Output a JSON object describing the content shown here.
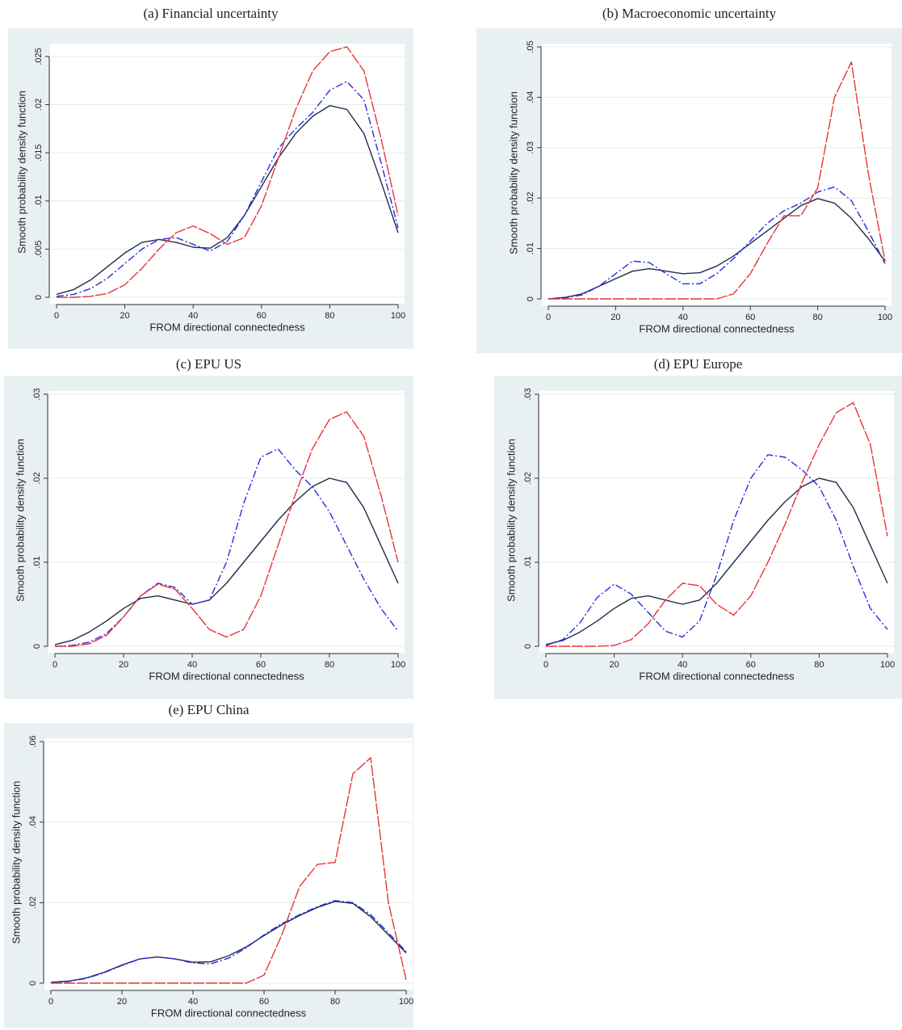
{
  "chart_data": [
    {
      "type": "line",
      "title": "(a) Financial uncertainty",
      "xlabel": "FROM directional connectedness",
      "ylabel": "Smooth probability density function",
      "x": [
        0,
        5,
        10,
        15,
        20,
        25,
        30,
        35,
        40,
        45,
        50,
        55,
        60,
        65,
        70,
        75,
        80,
        85,
        90,
        95,
        100
      ],
      "xlim": [
        0,
        100
      ],
      "xticks": [
        0,
        20,
        40,
        60,
        80,
        100
      ],
      "ylim": [
        0,
        0.026
      ],
      "yticks": [
        0,
        {
          "value": 0.005,
          "label": ".005"
        },
        {
          "value": 0.01,
          "label": ".01"
        },
        {
          "value": 0.015,
          "label": ".015"
        },
        {
          "value": 0.02,
          "label": ".02"
        },
        {
          "value": 0.025,
          "label": ".025"
        }
      ],
      "grid": true,
      "series": [
        {
          "color": "#1f2d4d",
          "dash": "none",
          "values": [
            0.0003,
            0.0008,
            0.0018,
            0.0032,
            0.0046,
            0.0057,
            0.006,
            0.0057,
            0.0052,
            0.0051,
            0.0062,
            0.0085,
            0.0115,
            0.0145,
            0.017,
            0.0188,
            0.0199,
            0.0195,
            0.017,
            0.012,
            0.0067
          ]
        },
        {
          "color": "#2a2ae0",
          "dash": "9,3,2,3",
          "values": [
            0.0001,
            0.0003,
            0.0009,
            0.002,
            0.0035,
            0.005,
            0.006,
            0.0062,
            0.0055,
            0.0048,
            0.0058,
            0.0085,
            0.012,
            0.0155,
            0.0175,
            0.0192,
            0.0215,
            0.0224,
            0.0205,
            0.014,
            0.0072
          ]
        },
        {
          "color": "#e8343a",
          "dash": "14,2",
          "values": [
            0,
            0,
            0.0001,
            0.0004,
            0.0013,
            0.003,
            0.005,
            0.0067,
            0.0074,
            0.0066,
            0.0055,
            0.0062,
            0.0095,
            0.0145,
            0.0195,
            0.0235,
            0.0255,
            0.026,
            0.0235,
            0.0165,
            0.0085
          ]
        }
      ]
    },
    {
      "type": "line",
      "title": "(b) Macroeconomic uncertainty",
      "xlabel": "FROM directional connectedness",
      "ylabel": "Smooth probability density function",
      "x": [
        0,
        5,
        10,
        15,
        20,
        25,
        30,
        35,
        40,
        45,
        50,
        55,
        60,
        65,
        70,
        75,
        80,
        85,
        90,
        95,
        100
      ],
      "xlim": [
        0,
        100
      ],
      "xticks": [
        0,
        20,
        40,
        60,
        80,
        100
      ],
      "ylim": [
        0,
        0.05
      ],
      "yticks": [
        0,
        {
          "value": 0.01,
          "label": ".01"
        },
        {
          "value": 0.02,
          "label": ".02"
        },
        {
          "value": 0.03,
          "label": ".03"
        },
        {
          "value": 0.04,
          "label": ".04"
        },
        {
          "value": 0.05,
          "label": ".05"
        }
      ],
      "grid": true,
      "series": [
        {
          "color": "#1f2d4d",
          "dash": "none",
          "values": [
            0,
            0.0003,
            0.001,
            0.0025,
            0.004,
            0.0055,
            0.006,
            0.0055,
            0.005,
            0.0052,
            0.0065,
            0.0085,
            0.011,
            0.0135,
            0.016,
            0.0185,
            0.0199,
            0.019,
            0.016,
            0.012,
            0.0075
          ]
        },
        {
          "color": "#2a2ae0",
          "dash": "9,3,2,3",
          "values": [
            0,
            0.0002,
            0.0008,
            0.0025,
            0.005,
            0.0075,
            0.0072,
            0.005,
            0.003,
            0.003,
            0.005,
            0.008,
            0.0115,
            0.015,
            0.0175,
            0.019,
            0.0212,
            0.0222,
            0.0195,
            0.0135,
            0.007
          ]
        },
        {
          "color": "#e8343a",
          "dash": "14,2",
          "values": [
            0,
            0,
            0,
            0,
            0,
            0,
            0,
            0,
            0,
            0,
            0,
            0.001,
            0.005,
            0.011,
            0.0165,
            0.0165,
            0.022,
            0.04,
            0.047,
            0.025,
            0.0075
          ]
        }
      ]
    },
    {
      "type": "line",
      "title": "(c) EPU US",
      "xlabel": "FROM directional connectedness",
      "ylabel": "Smooth probability density function",
      "x": [
        0,
        5,
        10,
        15,
        20,
        25,
        30,
        35,
        40,
        45,
        50,
        55,
        60,
        65,
        70,
        75,
        80,
        85,
        90,
        95,
        100
      ],
      "xlim": [
        0,
        100
      ],
      "xticks": [
        0,
        20,
        40,
        60,
        80,
        100
      ],
      "ylim": [
        0,
        0.03
      ],
      "yticks": [
        0,
        {
          "value": 0.01,
          "label": ".01"
        },
        {
          "value": 0.02,
          "label": ".02"
        },
        {
          "value": 0.03,
          "label": ".03"
        }
      ],
      "grid": true,
      "series": [
        {
          "color": "#1f2d4d",
          "dash": "none",
          "values": [
            0.0002,
            0.0007,
            0.0017,
            0.003,
            0.0045,
            0.0057,
            0.006,
            0.0055,
            0.005,
            0.0055,
            0.0075,
            0.01,
            0.0125,
            0.015,
            0.0172,
            0.019,
            0.02,
            0.0195,
            0.0165,
            0.012,
            0.0075
          ]
        },
        {
          "color": "#2a2ae0",
          "dash": "9,3,2,3",
          "values": [
            0,
            0.0001,
            0.0005,
            0.0015,
            0.0035,
            0.006,
            0.0075,
            0.007,
            0.005,
            0.0055,
            0.01,
            0.017,
            0.0225,
            0.0235,
            0.021,
            0.019,
            0.016,
            0.012,
            0.008,
            0.0045,
            0.0018
          ]
        },
        {
          "color": "#e8343a",
          "dash": "14,2",
          "values": [
            0,
            0,
            0.0003,
            0.0013,
            0.0035,
            0.006,
            0.0074,
            0.0068,
            0.0045,
            0.002,
            0.0011,
            0.002,
            0.006,
            0.012,
            0.018,
            0.0235,
            0.027,
            0.0279,
            0.025,
            0.018,
            0.01
          ]
        }
      ]
    },
    {
      "type": "line",
      "title": "(d) EPU Europe",
      "xlabel": "FROM directional connectedness",
      "ylabel": "Smooth probability density function",
      "x": [
        0,
        5,
        10,
        15,
        20,
        25,
        30,
        35,
        40,
        45,
        50,
        55,
        60,
        65,
        70,
        75,
        80,
        85,
        90,
        95,
        100
      ],
      "xlim": [
        0,
        100
      ],
      "xticks": [
        0,
        20,
        40,
        60,
        80,
        100
      ],
      "ylim": [
        0,
        0.03
      ],
      "yticks": [
        0,
        {
          "value": 0.01,
          "label": ".01"
        },
        {
          "value": 0.02,
          "label": ".02"
        },
        {
          "value": 0.03,
          "label": ".03"
        }
      ],
      "grid": true,
      "series": [
        {
          "color": "#1f2d4d",
          "dash": "none",
          "values": [
            0.0002,
            0.0007,
            0.0017,
            0.003,
            0.0045,
            0.0057,
            0.006,
            0.0055,
            0.005,
            0.0055,
            0.0075,
            0.01,
            0.0125,
            0.015,
            0.0172,
            0.019,
            0.02,
            0.0195,
            0.0165,
            0.012,
            0.0075
          ]
        },
        {
          "color": "#2a2ae0",
          "dash": "9,3,2,3",
          "values": [
            0.0001,
            0.0008,
            0.0028,
            0.0058,
            0.0074,
            0.0062,
            0.004,
            0.0018,
            0.0011,
            0.003,
            0.0085,
            0.015,
            0.02,
            0.0228,
            0.0225,
            0.021,
            0.019,
            0.015,
            0.0095,
            0.0045,
            0.002
          ]
        },
        {
          "color": "#e8343a",
          "dash": "14,2",
          "values": [
            0,
            0,
            0,
            0,
            0.0001,
            0.0008,
            0.0027,
            0.0055,
            0.0075,
            0.0072,
            0.005,
            0.0037,
            0.006,
            0.01,
            0.0145,
            0.0195,
            0.024,
            0.0278,
            0.029,
            0.024,
            0.0131
          ]
        }
      ]
    },
    {
      "type": "line",
      "title": "(e) EPU China",
      "xlabel": "FROM directional connectedness",
      "ylabel": "Smooth probability density function",
      "x": [
        0,
        5,
        10,
        15,
        20,
        25,
        30,
        35,
        40,
        45,
        50,
        55,
        60,
        65,
        70,
        75,
        80,
        85,
        90,
        95,
        100
      ],
      "xlim": [
        0,
        100
      ],
      "xticks": [
        0,
        20,
        40,
        60,
        80,
        100
      ],
      "ylim": [
        0,
        0.06
      ],
      "yticks": [
        0,
        {
          "value": 0.02,
          "label": ".02"
        },
        {
          "value": 0.04,
          "label": ".04"
        },
        {
          "value": 0.06,
          "label": ".06"
        }
      ],
      "grid": true,
      "series": [
        {
          "color": "#1f2d4d",
          "dash": "none",
          "values": [
            0.0002,
            0.0005,
            0.0013,
            0.0027,
            0.0045,
            0.006,
            0.0065,
            0.006,
            0.0052,
            0.0053,
            0.0068,
            0.009,
            0.0118,
            0.0145,
            0.0168,
            0.0188,
            0.0203,
            0.0198,
            0.0165,
            0.012,
            0.0075
          ]
        },
        {
          "color": "#2a2ae0",
          "dash": "9,3,2,3",
          "values": [
            0.0001,
            0.0004,
            0.0012,
            0.0026,
            0.0044,
            0.006,
            0.0065,
            0.006,
            0.005,
            0.0048,
            0.0062,
            0.0088,
            0.012,
            0.0148,
            0.017,
            0.019,
            0.0205,
            0.02,
            0.017,
            0.0125,
            0.0078
          ]
        },
        {
          "color": "#e8343a",
          "dash": "14,2",
          "values": [
            0,
            0,
            0,
            0,
            0,
            0,
            0,
            0,
            0,
            0,
            0,
            0,
            0.002,
            0.012,
            0.024,
            0.0295,
            0.03,
            0.052,
            0.056,
            0.02,
            0.0008
          ]
        }
      ]
    }
  ]
}
